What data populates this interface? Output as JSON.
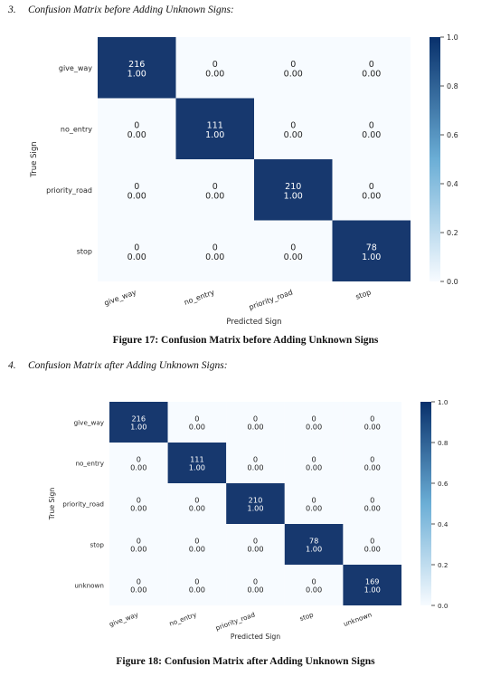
{
  "sections": [
    {
      "number": "3.",
      "text": "Confusion Matrix before Adding Unknown Signs:"
    },
    {
      "number": "4.",
      "text": "Confusion Matrix after Adding Unknown Signs:"
    }
  ],
  "captions": [
    "Figure 17: Confusion Matrix before Adding Unknown Signs",
    "Figure 18: Confusion Matrix after Adding Unknown Signs"
  ],
  "colors": {
    "high": "#08306b",
    "cell_max": "#17386e",
    "low": "#f7fbff",
    "text_light": "#ffffff",
    "text_dark": "#262626"
  },
  "chart_data": [
    {
      "type": "heatmap",
      "xlabel": "Predicted Sign",
      "ylabel": "True Sign",
      "x_categories": [
        "give_way",
        "no_entry",
        "priority_road",
        "stop"
      ],
      "y_categories": [
        "give_way",
        "no_entry",
        "priority_road",
        "stop"
      ],
      "counts": [
        [
          216,
          0,
          0,
          0
        ],
        [
          0,
          111,
          0,
          0
        ],
        [
          0,
          0,
          210,
          0
        ],
        [
          0,
          0,
          0,
          78
        ]
      ],
      "normalized": [
        [
          "1.00",
          "0.00",
          "0.00",
          "0.00"
        ],
        [
          "0.00",
          "1.00",
          "0.00",
          "0.00"
        ],
        [
          "0.00",
          "0.00",
          "1.00",
          "0.00"
        ],
        [
          "0.00",
          "0.00",
          "0.00",
          "1.00"
        ]
      ],
      "colorbar_ticks": [
        "1.0",
        "0.8",
        "0.6",
        "0.4",
        "0.2",
        "0.0"
      ],
      "colorbar_range": [
        0,
        1
      ]
    },
    {
      "type": "heatmap",
      "xlabel": "Predicted Sign",
      "ylabel": "True Sign",
      "x_categories": [
        "give_way",
        "no_entry",
        "priority_road",
        "stop",
        "unknown"
      ],
      "y_categories": [
        "give_way",
        "no_entry",
        "priority_road",
        "stop",
        "unknown"
      ],
      "counts": [
        [
          216,
          0,
          0,
          0,
          0
        ],
        [
          0,
          111,
          0,
          0,
          0
        ],
        [
          0,
          0,
          210,
          0,
          0
        ],
        [
          0,
          0,
          0,
          78,
          0
        ],
        [
          0,
          0,
          0,
          0,
          169
        ]
      ],
      "normalized": [
        [
          "1.00",
          "0.00",
          "0.00",
          "0.00",
          "0.00"
        ],
        [
          "0.00",
          "1.00",
          "0.00",
          "0.00",
          "0.00"
        ],
        [
          "0.00",
          "0.00",
          "1.00",
          "0.00",
          "0.00"
        ],
        [
          "0.00",
          "0.00",
          "0.00",
          "1.00",
          "0.00"
        ],
        [
          "0.00",
          "0.00",
          "0.00",
          "0.00",
          "1.00"
        ]
      ],
      "colorbar_ticks": [
        "1.0",
        "0.8",
        "0.6",
        "0.4",
        "0.2",
        "0.0"
      ],
      "colorbar_range": [
        0,
        1
      ]
    }
  ]
}
